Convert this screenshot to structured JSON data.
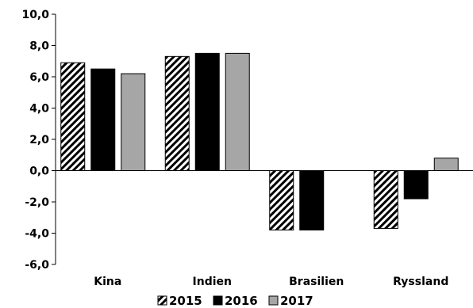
{
  "chart_data": {
    "type": "bar",
    "categories": [
      "Kina",
      "Indien",
      "Brasilien",
      "Ryssland"
    ],
    "series": [
      {
        "name": "2015",
        "values": [
          6.9,
          7.3,
          -3.8,
          -3.7
        ],
        "pattern": "hatched",
        "color": "#000000"
      },
      {
        "name": "2016",
        "values": [
          6.5,
          7.5,
          -3.8,
          -1.8
        ],
        "pattern": "solid",
        "color": "#000000"
      },
      {
        "name": "2017",
        "values": [
          6.2,
          7.5,
          null,
          0.8
        ],
        "pattern": "solid",
        "color": "#a6a6a6"
      }
    ],
    "yticks": [
      "10,0",
      "8,0",
      "6,0",
      "4,0",
      "2,0",
      "0,0",
      "-2,0",
      "-4,0",
      "-6,0"
    ],
    "ylim": [
      -6,
      10
    ],
    "grid": false,
    "legend_position": "bottom",
    "title": "",
    "xlabel": "",
    "ylabel": ""
  }
}
